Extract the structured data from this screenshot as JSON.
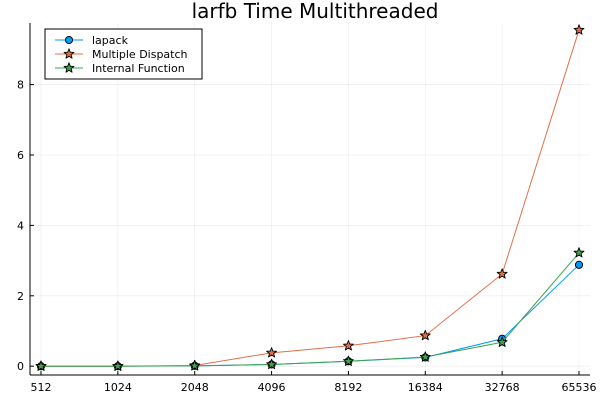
{
  "chart_data": {
    "type": "line",
    "title": "larfb Time Multithreaded",
    "xlabel": "",
    "ylabel": "",
    "categories": [
      "512",
      "1024",
      "2048",
      "4096",
      "8192",
      "16384",
      "32768",
      "65536"
    ],
    "ylim": [
      -0.25,
      9.75
    ],
    "yticks": [
      0,
      2,
      4,
      6,
      8
    ],
    "grid": true,
    "legend_position": "top-left",
    "series": [
      {
        "name": "lapack",
        "marker": "circle",
        "color": "#009af9",
        "values": [
          0.0,
          0.0,
          0.01,
          0.05,
          0.14,
          0.25,
          0.78,
          2.88
        ]
      },
      {
        "name": "Multiple Dispatch",
        "marker": "star",
        "color": "#e26f46",
        "values": [
          0.0,
          0.0,
          0.02,
          0.38,
          0.58,
          0.87,
          2.62,
          9.55
        ]
      },
      {
        "name": "Internal Function",
        "marker": "star",
        "color": "#3da44d",
        "values": [
          0.0,
          0.0,
          0.01,
          0.05,
          0.14,
          0.26,
          0.68,
          3.22
        ]
      }
    ]
  }
}
